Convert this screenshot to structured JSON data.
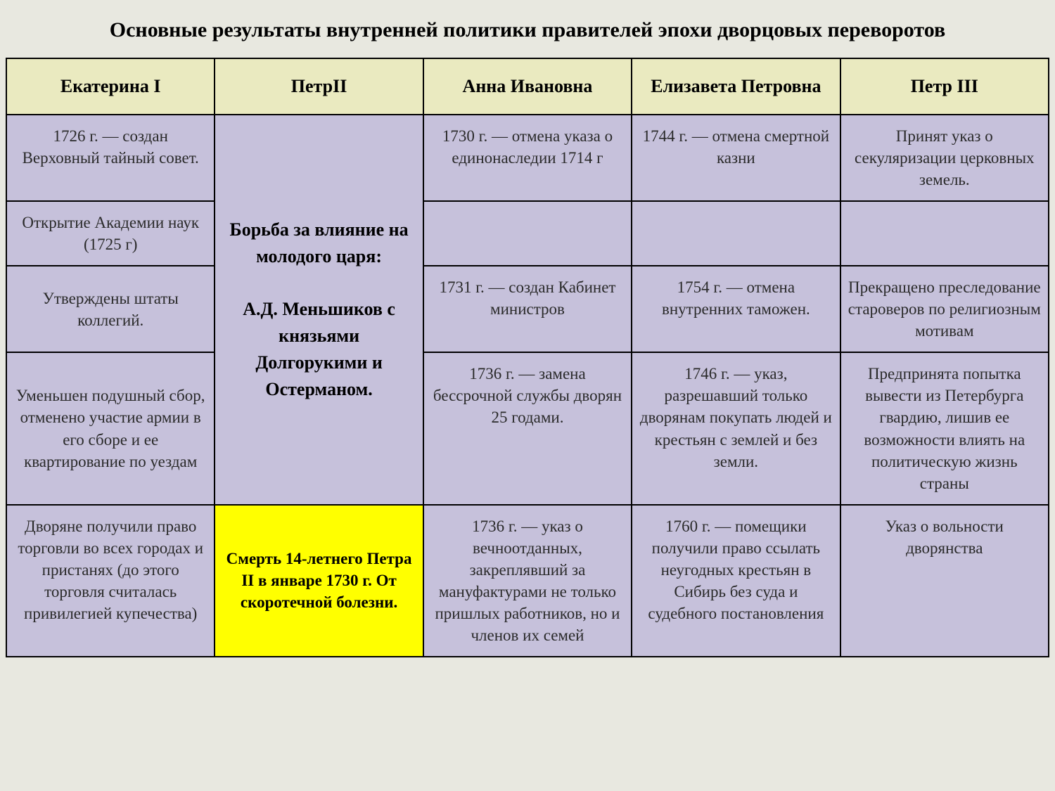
{
  "title": "Основные результаты внутренней политики правителей эпохи дворцовых переворотов",
  "headers": {
    "col1": "Екатерина I",
    "col2": "ПетрII",
    "col3": "Анна Ивановна",
    "col4": "Елизавета Петровна",
    "col5": "Петр III"
  },
  "col1": {
    "r1": "1726 г. — создан Верховный тайный совет.",
    "r2": "Открытие Академии наук (1725 г)",
    "r3": "Утверждены штаты коллегий.",
    "r4": "Уменьшен подушный сбор, отменено участие армии в его сборе и ее квартирование по уездам",
    "r5": "Дворяне получили право торговли во всех городах и пристанях (до этого торговля считалась привилегией купечества)"
  },
  "col2": {
    "merged_line1": "Борьба за влияние на молодого царя:",
    "merged_line2": "А.Д. Меньшиков с князьями Долгорукими и Остерманом.",
    "highlight": "Смерть 14-летнего Петра II в январе 1730 г. От скоротечной болезни."
  },
  "col3": {
    "r1": "1730 г. — отмена указа о единонаследии 1714 г",
    "r2": "",
    "r3": "1731 г. — создан Кабинет министров",
    "r4": "1736 г. — замена бессрочной службы дворян 25 годами.",
    "r5": "1736 г. — указ о вечноотданных, закреплявший за мануфактурами не только пришлых работников, но и членов их семей"
  },
  "col4": {
    "r1": "1744 г. — отмена смертной казни",
    "r2": "",
    "r3": "1754 г. — отмена внутренних таможен.",
    "r4": "1746 г. — указ, разрешавший только дворянам покупать людей и крестьян с землей и без земли.",
    "r5": "1760 г. — помещики получили право ссылать неугодных крестьян в Сибирь без суда и судебного постановления"
  },
  "col5": {
    "r1": "Принят указ о секуляризации церковных земель.",
    "r2": "",
    "r3": "Прекращено преследование староверов по религиозным мотивам",
    "r4": "Предпринята попытка вывести из Петербурга гвардию, лишив ее возможности влиять на политическую жизнь страны",
    "r5": "Указ о вольности дворянства"
  },
  "styles": {
    "background_page": "#e8e8e0",
    "header_bg": "#eaeac0",
    "cell_bg": "#c6c1db",
    "highlight_bg": "#ffff00",
    "border_color": "#000000",
    "text_color": "#2a2a2a",
    "title_fontsize": 30,
    "header_fontsize": 26,
    "cell_fontsize": 23
  }
}
